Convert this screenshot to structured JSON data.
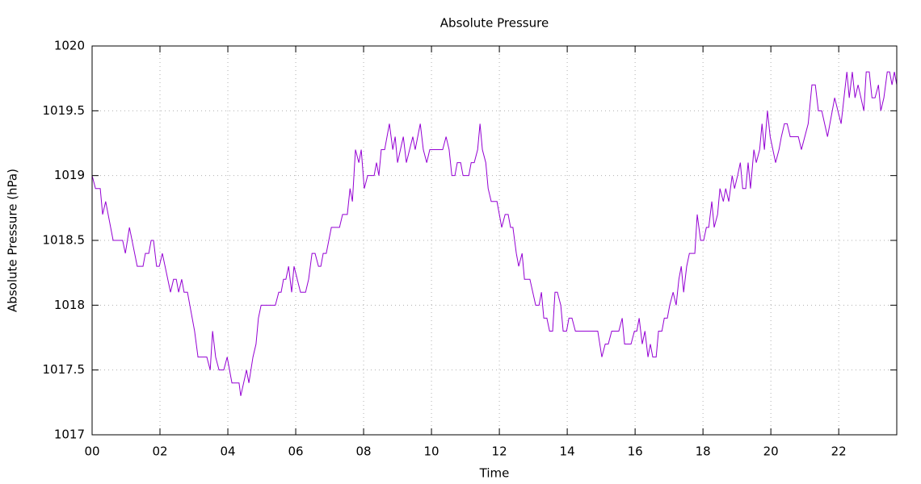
{
  "chart_data": {
    "type": "line",
    "title": "Absolute Pressure",
    "x_label": "Time",
    "y_label": "Absolute Pressure (hPa)",
    "xlim": [
      0,
      23.71
    ],
    "ylim": [
      1017,
      1020
    ],
    "xticks": [
      {
        "value": 0,
        "label": "00"
      },
      {
        "value": 2,
        "label": "02"
      },
      {
        "value": 4,
        "label": "04"
      },
      {
        "value": 6,
        "label": "06"
      },
      {
        "value": 8,
        "label": "08"
      },
      10,
      12,
      14,
      16,
      18,
      20,
      22
    ],
    "yticks": [
      1017,
      1017.5,
      1018,
      1018.5,
      1019,
      1019.5,
      1020
    ],
    "grid": true,
    "series": [
      {
        "name": "Absolute Pressure",
        "color": "#9400d3",
        "x": [
          0,
          0.1,
          0.24,
          0.31,
          0.4,
          0.62,
          0.9,
          0.98,
          1.1,
          1.33,
          1.5,
          1.57,
          1.67,
          1.74,
          1.81,
          1.9,
          1.98,
          2.07,
          2.31,
          2.4,
          2.48,
          2.55,
          2.64,
          2.71,
          2.81,
          3.02,
          3.12,
          3.38,
          3.48,
          3.55,
          3.64,
          3.74,
          3.88,
          3.98,
          4.12,
          4.24,
          4.33,
          4.38,
          4.55,
          4.62,
          4.74,
          4.83,
          4.9,
          4.98,
          5.4,
          5.5,
          5.57,
          5.64,
          5.71,
          5.79,
          5.88,
          5.95,
          6.14,
          6.29,
          6.38,
          6.48,
          6.57,
          6.67,
          6.74,
          6.81,
          6.9,
          7.05,
          7.29,
          7.38,
          7.52,
          7.6,
          7.67,
          7.76,
          7.86,
          7.93,
          8.02,
          8.12,
          8.31,
          8.38,
          8.45,
          8.52,
          8.62,
          8.76,
          8.86,
          8.93,
          9.0,
          9.17,
          9.26,
          9.45,
          9.52,
          9.67,
          9.76,
          9.86,
          9.95,
          10.33,
          10.43,
          10.52,
          10.6,
          10.69,
          10.76,
          10.86,
          10.93,
          11.1,
          11.17,
          11.26,
          11.36,
          11.43,
          11.5,
          11.6,
          11.67,
          11.76,
          11.93,
          12.07,
          12.17,
          12.26,
          12.33,
          12.4,
          12.5,
          12.57,
          12.67,
          12.74,
          12.9,
          13.07,
          13.17,
          13.24,
          13.31,
          13.4,
          13.48,
          13.57,
          13.64,
          13.71,
          13.81,
          13.88,
          13.98,
          14.05,
          14.14,
          14.24,
          14.9,
          15.02,
          15.12,
          15.21,
          15.31,
          15.52,
          15.62,
          15.69,
          15.88,
          15.98,
          16.05,
          16.12,
          16.21,
          16.29,
          16.38,
          16.45,
          16.52,
          16.62,
          16.69,
          16.79,
          16.86,
          16.95,
          17.02,
          17.12,
          17.21,
          17.29,
          17.36,
          17.43,
          17.52,
          17.6,
          17.76,
          17.83,
          17.93,
          18.02,
          18.1,
          18.17,
          18.26,
          18.33,
          18.43,
          18.5,
          18.6,
          18.67,
          18.76,
          18.86,
          18.93,
          19.02,
          19.1,
          19.17,
          19.26,
          19.33,
          19.4,
          19.5,
          19.57,
          19.67,
          19.74,
          19.81,
          19.9,
          19.98,
          20.14,
          20.24,
          20.31,
          20.4,
          20.48,
          20.57,
          20.81,
          20.9,
          21.1,
          21.21,
          21.31,
          21.4,
          21.5,
          21.67,
          21.88,
          22.07,
          22.24,
          22.31,
          22.4,
          22.48,
          22.57,
          22.74,
          22.81,
          22.9,
          22.98,
          23.07,
          23.17,
          23.24,
          23.33,
          23.43,
          23.5,
          23.57,
          23.64,
          23.71
        ],
        "values": [
          1019.0,
          1018.9,
          1018.9,
          1018.7,
          1018.8,
          1018.5,
          1018.5,
          1018.4,
          1018.6,
          1018.3,
          1018.3,
          1018.4,
          1018.4,
          1018.5,
          1018.5,
          1018.3,
          1018.3,
          1018.4,
          1018.1,
          1018.2,
          1018.2,
          1018.1,
          1018.2,
          1018.1,
          1018.1,
          1017.8,
          1017.6,
          1017.6,
          1017.5,
          1017.8,
          1017.6,
          1017.5,
          1017.5,
          1017.6,
          1017.4,
          1017.4,
          1017.4,
          1017.3,
          1017.5,
          1017.4,
          1017.6,
          1017.7,
          1017.9,
          1018.0,
          1018.0,
          1018.1,
          1018.1,
          1018.2,
          1018.2,
          1018.3,
          1018.1,
          1018.3,
          1018.1,
          1018.1,
          1018.2,
          1018.4,
          1018.4,
          1018.3,
          1018.3,
          1018.4,
          1018.4,
          1018.6,
          1018.6,
          1018.7,
          1018.7,
          1018.9,
          1018.8,
          1019.2,
          1019.1,
          1019.2,
          1018.9,
          1019.0,
          1019.0,
          1019.1,
          1019.0,
          1019.2,
          1019.2,
          1019.4,
          1019.2,
          1019.3,
          1019.1,
          1019.3,
          1019.1,
          1019.3,
          1019.2,
          1019.4,
          1019.2,
          1019.1,
          1019.2,
          1019.2,
          1019.3,
          1019.2,
          1019.0,
          1019.0,
          1019.1,
          1019.1,
          1019.0,
          1019.0,
          1019.1,
          1019.1,
          1019.2,
          1019.4,
          1019.2,
          1019.1,
          1018.9,
          1018.8,
          1018.8,
          1018.6,
          1018.7,
          1018.7,
          1018.6,
          1018.6,
          1018.4,
          1018.3,
          1018.4,
          1018.2,
          1018.2,
          1018.0,
          1018.0,
          1018.1,
          1017.9,
          1017.9,
          1017.8,
          1017.8,
          1018.1,
          1018.1,
          1018.0,
          1017.8,
          1017.8,
          1017.9,
          1017.9,
          1017.8,
          1017.8,
          1017.6,
          1017.7,
          1017.7,
          1017.8,
          1017.8,
          1017.9,
          1017.7,
          1017.7,
          1017.8,
          1017.8,
          1017.9,
          1017.7,
          1017.8,
          1017.6,
          1017.7,
          1017.6,
          1017.6,
          1017.8,
          1017.8,
          1017.9,
          1017.9,
          1018.0,
          1018.1,
          1018.0,
          1018.2,
          1018.3,
          1018.1,
          1018.3,
          1018.4,
          1018.4,
          1018.7,
          1018.5,
          1018.5,
          1018.6,
          1018.6,
          1018.8,
          1018.6,
          1018.7,
          1018.9,
          1018.8,
          1018.9,
          1018.8,
          1019.0,
          1018.9,
          1019.0,
          1019.1,
          1018.9,
          1018.9,
          1019.1,
          1018.9,
          1019.2,
          1019.1,
          1019.2,
          1019.4,
          1019.2,
          1019.5,
          1019.3,
          1019.1,
          1019.2,
          1019.3,
          1019.4,
          1019.4,
          1019.3,
          1019.3,
          1019.2,
          1019.4,
          1019.7,
          1019.7,
          1019.5,
          1019.5,
          1019.3,
          1019.6,
          1019.4,
          1019.8,
          1019.6,
          1019.8,
          1019.6,
          1019.7,
          1019.5,
          1019.8,
          1019.8,
          1019.6,
          1019.6,
          1019.7,
          1019.5,
          1019.6,
          1019.8,
          1019.8,
          1019.7,
          1019.8,
          1019.7
        ]
      }
    ]
  }
}
